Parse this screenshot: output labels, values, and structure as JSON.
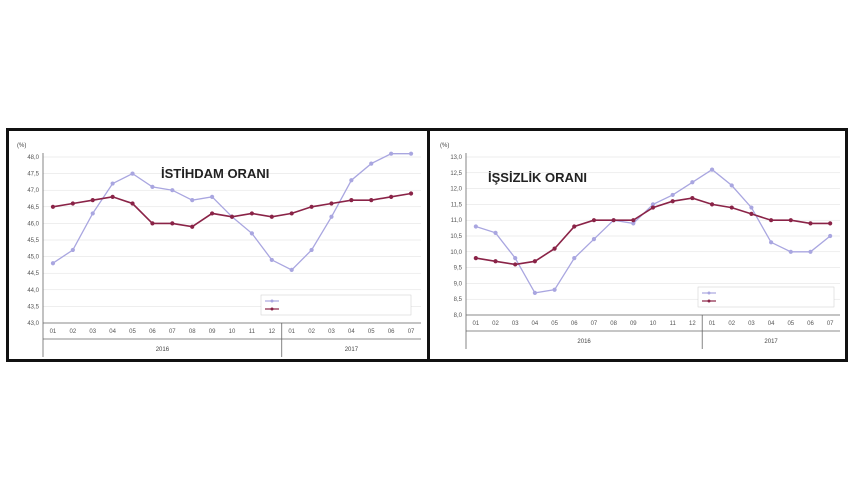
{
  "chart_data": [
    {
      "type": "line",
      "title": "İSTİHDAM ORANI",
      "unit": "(%)",
      "ylim": [
        43.0,
        48.0
      ],
      "yticks": [
        "48,0",
        "47,5",
        "47,0",
        "46,5",
        "46,0",
        "45,5",
        "45,0",
        "44,5",
        "44,0",
        "43,5",
        "43,0"
      ],
      "categories": [
        "01",
        "02",
        "03",
        "04",
        "05",
        "06",
        "07",
        "08",
        "09",
        "10",
        "11",
        "12",
        "01",
        "02",
        "03",
        "04",
        "05",
        "06",
        "07"
      ],
      "years": [
        {
          "label": "2016"
        },
        {
          "label": "2017"
        }
      ],
      "grid": true,
      "legend": "bottom-right",
      "series": [
        {
          "name": "",
          "color": "#a9a6e0",
          "values": [
            44.8,
            45.2,
            46.3,
            47.2,
            47.5,
            47.1,
            47.0,
            46.7,
            46.8,
            46.2,
            45.7,
            44.9,
            44.6,
            45.2,
            46.2,
            47.3,
            47.8,
            48.1,
            48.1
          ]
        },
        {
          "name": "",
          "color": "#8a2347",
          "values": [
            46.5,
            46.6,
            46.7,
            46.8,
            46.6,
            46.0,
            46.0,
            45.9,
            46.3,
            46.2,
            46.3,
            46.2,
            46.3,
            46.5,
            46.6,
            46.7,
            46.7,
            46.8,
            46.9
          ]
        }
      ]
    },
    {
      "type": "line",
      "title": "İŞSİZLİK ORANI",
      "unit": "(%)",
      "ylim": [
        8.0,
        13.0
      ],
      "yticks": [
        "13,0",
        "12,5",
        "12,0",
        "11,5",
        "11,0",
        "10,5",
        "10,0",
        "9,5",
        "9,0",
        "8,5",
        "8,0"
      ],
      "categories": [
        "01",
        "02",
        "03",
        "04",
        "05",
        "06",
        "07",
        "08",
        "09",
        "10",
        "11",
        "12",
        "01",
        "02",
        "03",
        "04",
        "05",
        "06",
        "07"
      ],
      "years": [
        {
          "label": "2016"
        },
        {
          "label": "2017"
        }
      ],
      "grid": true,
      "legend": "bottom-right",
      "series": [
        {
          "name": "",
          "color": "#a9a6e0",
          "values": [
            10.8,
            10.6,
            9.8,
            8.7,
            8.8,
            9.8,
            10.4,
            11.0,
            10.9,
            11.5,
            11.8,
            12.2,
            12.6,
            12.1,
            11.4,
            10.3,
            10.0,
            10.0,
            10.5
          ]
        },
        {
          "name": "",
          "color": "#8a2347",
          "values": [
            9.8,
            9.7,
            9.6,
            9.7,
            10.1,
            10.8,
            11.0,
            11.0,
            11.0,
            11.4,
            11.6,
            11.7,
            11.5,
            11.4,
            11.2,
            11.0,
            11.0,
            10.9,
            10.9
          ]
        }
      ]
    }
  ]
}
